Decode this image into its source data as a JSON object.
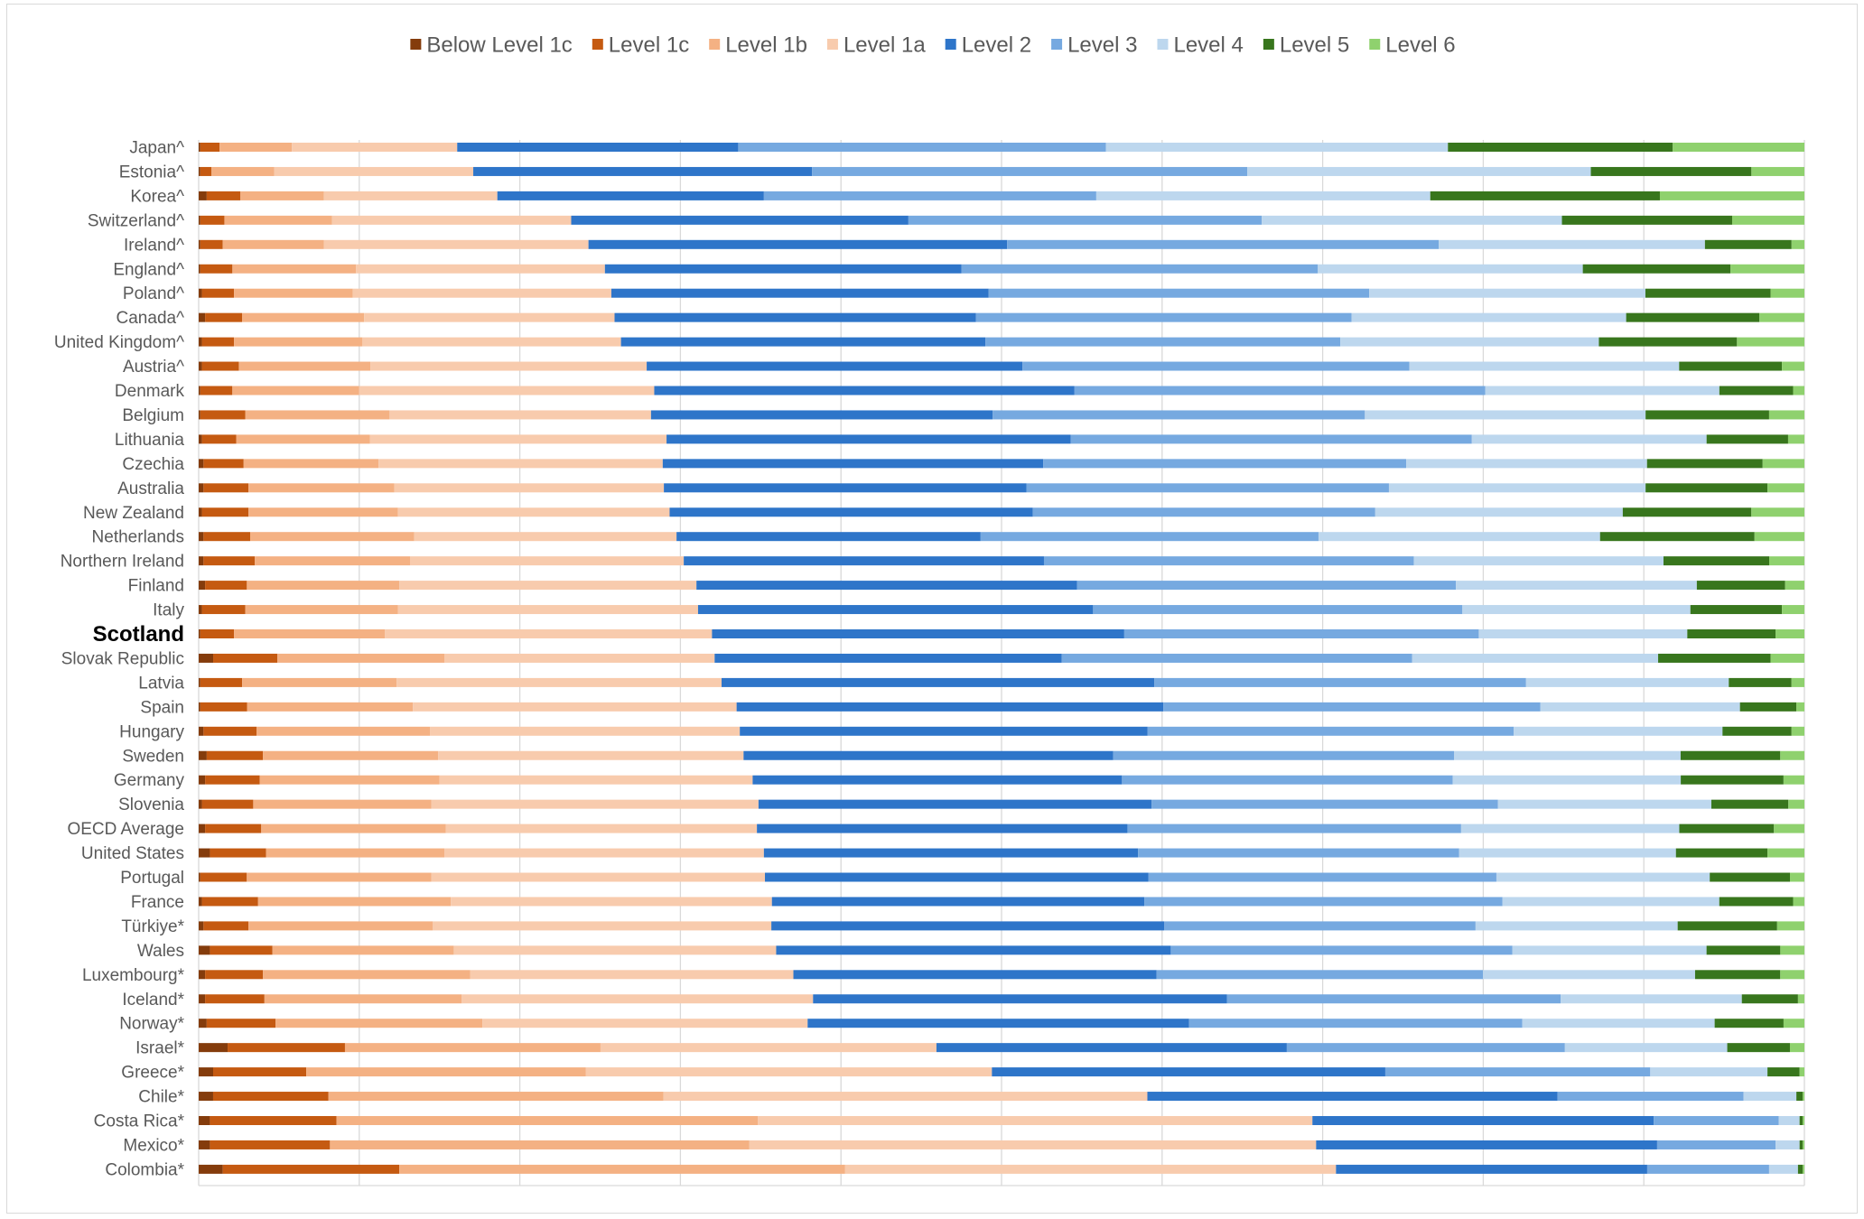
{
  "chart_data": {
    "type": "bar",
    "stacking": "percent",
    "orientation": "horizontal",
    "title": "",
    "xlabel": "",
    "ylabel": "",
    "xlim": [
      0,
      100
    ],
    "grid": true,
    "legend_position": "top",
    "highlight_category": "Scotland",
    "categories": [
      "Japan^",
      "Estonia^",
      "Korea^",
      "Switzerland^",
      "Ireland^",
      "England^",
      "Poland^",
      "Canada^",
      "United Kingdom^",
      "Austria^",
      "Denmark",
      "Belgium",
      "Lithuania",
      "Czechia",
      "Australia",
      "New Zealand",
      "Netherlands",
      "Northern Ireland",
      "Finland",
      "Italy",
      "Scotland",
      "Slovak Republic",
      "Latvia",
      "Spain",
      "Hungary",
      "Sweden",
      "Germany",
      "Slovenia",
      "OECD Average",
      "United States",
      "Portugal",
      "France",
      "Türkiye*",
      "Wales",
      "Luxembourg*",
      "Iceland*",
      "Norway*",
      "Israel*",
      "Greece*",
      "Chile*",
      "Costa Rica*",
      "Mexico*",
      "Colombia*"
    ],
    "series": [
      {
        "name": "Below Level 1c",
        "color": "#843c0c",
        "values": [
          0.1,
          0.1,
          0.5,
          0.1,
          0.1,
          0.1,
          0.2,
          0.4,
          0.2,
          0.2,
          0.1,
          0.1,
          0.2,
          0.3,
          0.3,
          0.2,
          0.3,
          0.3,
          0.4,
          0.2,
          0.1,
          0.9,
          0.1,
          0.1,
          0.3,
          0.5,
          0.4,
          0.2,
          0.4,
          0.7,
          0.1,
          0.2,
          0.3,
          0.7,
          0.4,
          0.4,
          0.5,
          1.8,
          0.9,
          0.9,
          0.7,
          0.7,
          1.5
        ]
      },
      {
        "name": "Level 1c",
        "color": "#c55a11",
        "values": [
          1.2,
          0.7,
          2.1,
          1.5,
          1.4,
          2.0,
          2.0,
          2.3,
          2.0,
          2.3,
          2.0,
          2.8,
          2.1,
          2.5,
          2.8,
          2.9,
          2.9,
          3.2,
          2.6,
          2.7,
          2.1,
          4.0,
          2.6,
          2.9,
          3.3,
          3.5,
          3.4,
          3.2,
          3.5,
          3.5,
          2.9,
          3.5,
          2.8,
          3.9,
          3.6,
          3.7,
          4.3,
          7.3,
          5.8,
          7.2,
          7.9,
          7.5,
          11.0
        ]
      },
      {
        "name": "Level 1b",
        "color": "#f4b183",
        "values": [
          4.5,
          3.9,
          5.2,
          6.7,
          6.3,
          7.7,
          7.4,
          7.6,
          8.0,
          8.2,
          7.9,
          9.0,
          8.2,
          8.4,
          9.1,
          9.3,
          10.2,
          9.7,
          9.5,
          9.5,
          9.4,
          10.4,
          9.6,
          10.3,
          10.8,
          10.9,
          11.2,
          11.1,
          11.5,
          11.1,
          11.5,
          12.0,
          11.5,
          11.3,
          12.9,
          12.3,
          12.9,
          15.9,
          17.4,
          20.9,
          26.3,
          26.2,
          27.8
        ]
      },
      {
        "name": "Level 1a",
        "color": "#f8cbad",
        "values": [
          10.3,
          12.4,
          10.8,
          14.9,
          16.5,
          15.5,
          16.1,
          15.6,
          16.1,
          17.2,
          18.4,
          16.3,
          18.2,
          17.7,
          16.8,
          16.9,
          16.3,
          17.1,
          18.5,
          18.7,
          20.4,
          16.8,
          20.2,
          20.1,
          19.3,
          19.0,
          19.5,
          20.4,
          19.4,
          19.9,
          20.8,
          20.0,
          21.1,
          20.1,
          20.1,
          21.9,
          20.3,
          20.9,
          25.3,
          30.2,
          34.6,
          35.4,
          30.6
        ]
      },
      {
        "name": "Level 2",
        "color": "#2e75c9",
        "values": [
          17.5,
          21.1,
          16.6,
          21.0,
          26.1,
          22.2,
          23.5,
          22.5,
          22.7,
          23.4,
          26.2,
          21.3,
          24.8,
          23.7,
          22.6,
          22.6,
          18.9,
          22.5,
          23.7,
          24.6,
          25.7,
          21.6,
          26.9,
          26.5,
          25.4,
          23.0,
          23.0,
          24.5,
          23.1,
          23.3,
          23.9,
          23.2,
          24.5,
          24.6,
          22.6,
          25.8,
          23.8,
          21.8,
          24.5,
          25.6,
          21.3,
          21.3,
          19.4
        ]
      },
      {
        "name": "Level 3",
        "color": "#76a9e0",
        "values": [
          22.9,
          27.1,
          20.7,
          22.0,
          26.9,
          22.2,
          23.7,
          23.4,
          22.1,
          24.1,
          25.6,
          23.2,
          24.6,
          22.6,
          22.6,
          21.3,
          21.0,
          23.1,
          23.6,
          23.0,
          22.1,
          21.8,
          23.1,
          23.4,
          22.8,
          21.2,
          20.6,
          21.6,
          20.8,
          20.0,
          21.7,
          22.3,
          19.4,
          21.3,
          20.3,
          20.8,
          20.8,
          17.3,
          16.5,
          11.6,
          7.8,
          7.4,
          7.6
        ]
      },
      {
        "name": "Level 4",
        "color": "#bdd7ee",
        "values": [
          21.3,
          21.4,
          20.8,
          18.7,
          16.6,
          16.5,
          17.2,
          17.1,
          16.1,
          16.8,
          14.6,
          17.5,
          14.4,
          15.0,
          16.0,
          15.4,
          17.5,
          15.6,
          15.0,
          14.2,
          13.0,
          15.3,
          12.6,
          12.4,
          13.0,
          14.1,
          14.2,
          13.3,
          13.6,
          13.5,
          13.3,
          13.5,
          12.6,
          12.1,
          13.2,
          11.3,
          12.0,
          10.1,
          7.3,
          3.3,
          1.3,
          1.5,
          1.8
        ]
      },
      {
        "name": "Level 5",
        "color": "#38761d",
        "values": [
          14.0,
          10.0,
          14.3,
          10.6,
          5.4,
          9.2,
          7.8,
          8.3,
          8.6,
          6.4,
          4.6,
          7.7,
          5.0,
          7.2,
          7.6,
          8.0,
          9.6,
          6.6,
          5.5,
          5.7,
          5.5,
          7.0,
          3.9,
          3.5,
          4.3,
          6.2,
          6.4,
          4.8,
          5.9,
          5.7,
          5.0,
          4.6,
          6.2,
          4.6,
          5.3,
          3.5,
          4.3,
          3.9,
          2.0,
          0.4,
          0.2,
          0.2,
          0.3
        ]
      },
      {
        "name": "Level 6",
        "color": "#8fd16e",
        "values": [
          8.2,
          3.3,
          9.0,
          4.5,
          0.8,
          4.6,
          2.1,
          2.8,
          4.2,
          1.4,
          0.7,
          2.2,
          1.0,
          2.6,
          2.3,
          3.3,
          3.1,
          2.2,
          1.2,
          1.4,
          1.8,
          2.1,
          0.8,
          0.5,
          0.8,
          1.5,
          1.3,
          1.0,
          1.9,
          2.3,
          0.9,
          0.7,
          1.7,
          1.5,
          1.5,
          0.4,
          1.3,
          0.9,
          0.3,
          0.1,
          0.1,
          0.1,
          0.1
        ]
      }
    ]
  }
}
